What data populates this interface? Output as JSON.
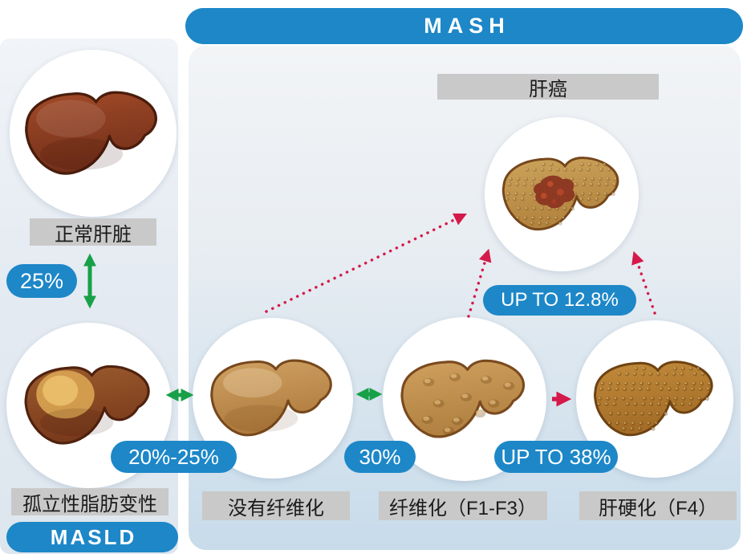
{
  "banners": {
    "mash": "MASH",
    "masld": "MASLD"
  },
  "stages": {
    "normal": {
      "label": "正常肝脏"
    },
    "steatosis": {
      "label": "孤立性脂肪变性"
    },
    "no_fibrosis": {
      "label": "没有纤维化"
    },
    "fibrosis": {
      "label": "纤维化（F1-F3）"
    },
    "cirrhosis": {
      "label": "肝硬化（F4）"
    },
    "cancer": {
      "label": "肝癌"
    }
  },
  "badges": {
    "normal_to_steatosis": "25%",
    "steatosis_to_no_fibrosis": "20%-25%",
    "no_fibrosis_to_fibrosis": "30%",
    "fibrosis_to_cancer": "UP TO 12.8%",
    "fibrosis_to_cirrhosis": "UP TO 38%"
  },
  "colors": {
    "accent_blue": "#1d87c8",
    "arrow_green": "#18a048",
    "arrow_red": "#d5194a",
    "label_gray": "#c9c9c9"
  }
}
